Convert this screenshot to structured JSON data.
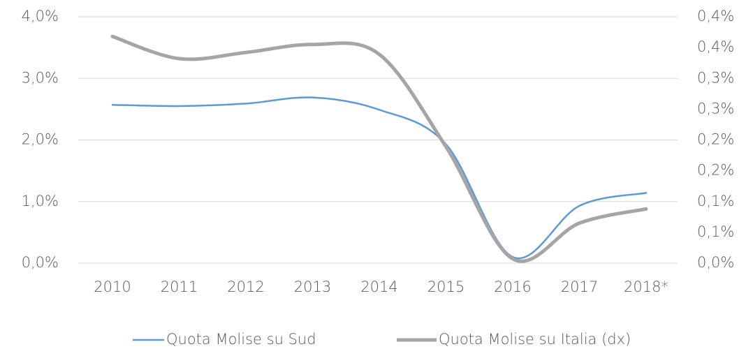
{
  "chart_data": {
    "type": "line",
    "categories": [
      "2010",
      "2011",
      "2012",
      "2013",
      "2014",
      "2015",
      "2016",
      "2017",
      "2018*"
    ],
    "series": [
      {
        "name": "Quota Molise su Sud",
        "color": "#5b9bd5",
        "values": [
          2.57,
          2.55,
          2.59,
          2.69,
          2.49,
          1.93,
          0.1,
          0.93,
          1.14
        ]
      },
      {
        "name": "Quota Molise su Italia (dx)",
        "color": "#a5a5a5",
        "axis": "y2",
        "values": [
          0.368,
          0.332,
          0.342,
          0.355,
          0.339,
          0.189,
          0.007,
          0.065,
          0.088
        ]
      }
    ],
    "ylim": [
      0,
      4
    ],
    "yticks": [
      {
        "value": 0,
        "label": "0,0%"
      },
      {
        "value": 1,
        "label": "1,0%"
      },
      {
        "value": 2,
        "label": "2,0%"
      },
      {
        "value": 3,
        "label": "3,0%"
      },
      {
        "value": 4,
        "label": "4,0%"
      }
    ],
    "y2lim": [
      0,
      0.4
    ],
    "y2ticks": [
      {
        "value": 0,
        "label": "0,0%"
      },
      {
        "value": 0.05,
        "label": "0,1%"
      },
      {
        "value": 0.1,
        "label": "0,1%"
      },
      {
        "value": 0.15,
        "label": "0,2%"
      },
      {
        "value": 0.2,
        "label": "0,2%"
      },
      {
        "value": 0.25,
        "label": "0,3%"
      },
      {
        "value": 0.3,
        "label": "0,3%"
      },
      {
        "value": 0.35,
        "label": "0,4%"
      },
      {
        "value": 0.4,
        "label": "0,4%"
      }
    ],
    "grid": true,
    "legend": "bottom"
  }
}
